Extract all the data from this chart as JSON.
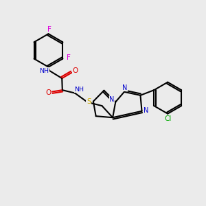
{
  "background_color": "#ebebeb",
  "atom_colors": {
    "C": "#000000",
    "N": "#0000cc",
    "O": "#dd0000",
    "S": "#ccaa00",
    "F": "#dd00dd",
    "Cl": "#00aa00",
    "H": "#008888"
  },
  "bond_color": "#000000",
  "lw": 1.5,
  "off": 0.08
}
